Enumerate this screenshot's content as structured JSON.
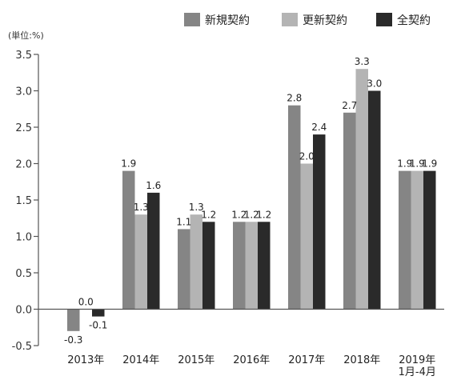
{
  "chart_data": {
    "type": "bar",
    "unit_label": "(単位:%)",
    "categories": [
      "2013年",
      "2014年",
      "2015年",
      "2016年",
      "2017年",
      "2018年",
      "2019年"
    ],
    "category_sublabels": [
      "",
      "",
      "",
      "",
      "",
      "",
      "1月-4月"
    ],
    "series": [
      {
        "name": "新規契約",
        "color": "#858585",
        "values": [
          -0.3,
          1.9,
          1.1,
          1.2,
          2.8,
          2.7,
          1.9
        ]
      },
      {
        "name": "更新契約",
        "color": "#b4b4b4",
        "values": [
          0.0,
          1.3,
          1.3,
          1.2,
          2.0,
          3.3,
          1.9
        ]
      },
      {
        "name": "全契約",
        "color": "#2a2a2a",
        "values": [
          -0.1,
          1.6,
          1.2,
          1.2,
          2.4,
          3.0,
          1.9
        ]
      }
    ],
    "data_labels": [
      [
        "-0.3",
        "1.9",
        "1.1",
        "1.2",
        "2.8",
        "2.7",
        "1.9"
      ],
      [
        "0.0",
        "1.3",
        "1.3",
        "1.2",
        "2.0",
        "3.3",
        "1.9"
      ],
      [
        "-0.1",
        "1.6",
        "1.2",
        "1.2",
        "2.4",
        "3.0",
        "1.9"
      ]
    ],
    "ylim": [
      -0.5,
      3.5
    ],
    "yticks": [
      -0.5,
      0.0,
      0.5,
      1.0,
      1.5,
      2.0,
      2.5,
      3.0,
      3.5
    ],
    "ytick_labels": [
      "-0.5",
      "0.0",
      "0.5",
      "1.0",
      "1.5",
      "2.0",
      "2.5",
      "3.0",
      "3.5"
    ],
    "grid": false,
    "legend_position": "top-right"
  }
}
